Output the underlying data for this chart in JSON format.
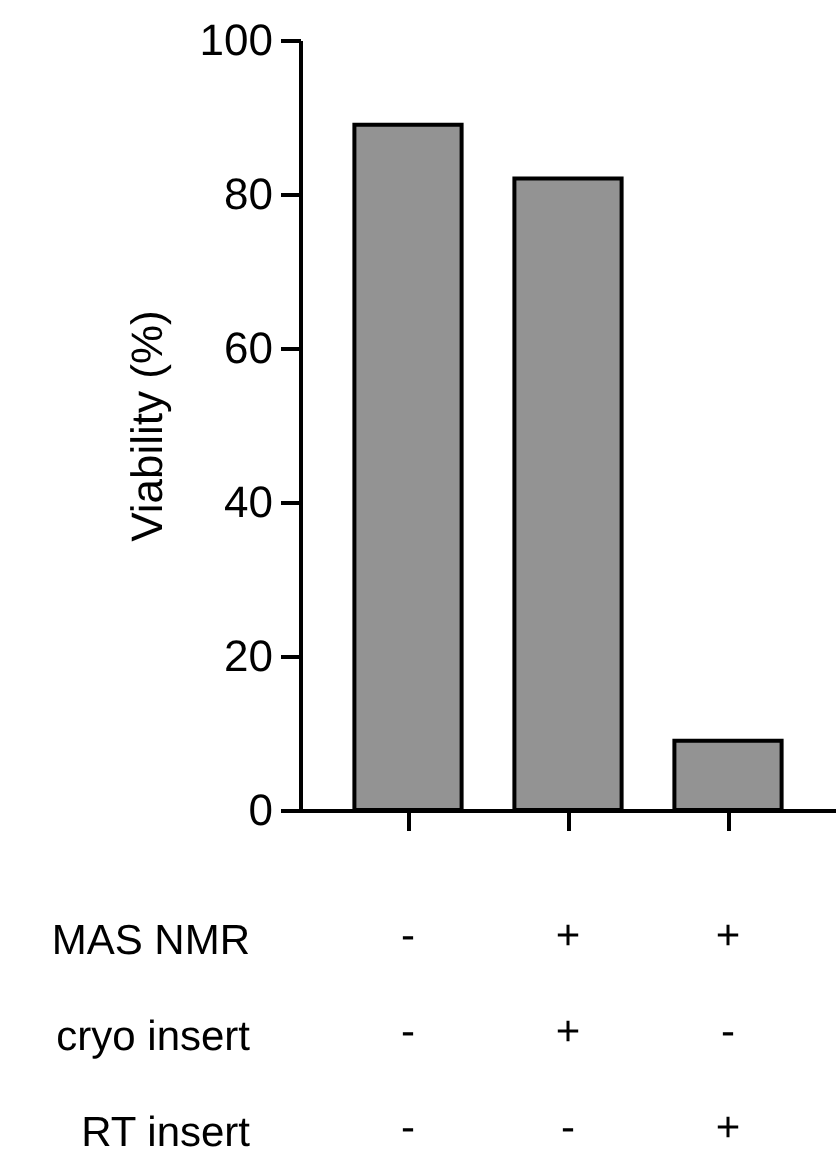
{
  "chart_data": {
    "type": "bar",
    "ylabel": "Viability (%)",
    "categories": [
      "-\n-\n-",
      "+\n+\n-",
      "+\n-\n+"
    ],
    "values": [
      89,
      82,
      9
    ],
    "color": "#939393",
    "ylim": [
      0,
      100
    ],
    "yticks": [
      0,
      20,
      40,
      60,
      80,
      100
    ],
    "grid": false,
    "annotations": [
      "MAS NMR",
      "cryo insert",
      "RT insert"
    ]
  }
}
